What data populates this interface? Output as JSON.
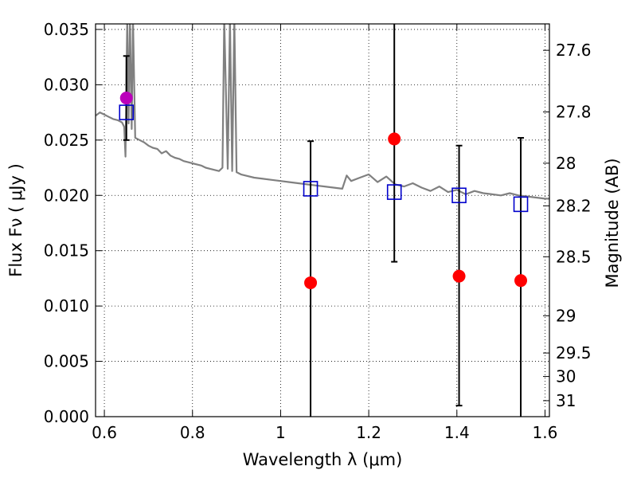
{
  "chart_data": {
    "type": "scatter",
    "title": "",
    "xlabel": "Wavelength  λ (μm)",
    "ylabel": "Flux  Fν  ( μJy )",
    "ylabel_right": "Magnitude (AB)",
    "xlim": [
      0.58,
      1.61
    ],
    "ylim": [
      0,
      0.0355
    ],
    "grid": true,
    "x_ticks": [
      {
        "v": 0.6,
        "label": "0.6"
      },
      {
        "v": 0.8,
        "label": "0.8"
      },
      {
        "v": 1.0,
        "label": "1"
      },
      {
        "v": 1.2,
        "label": "1.2"
      },
      {
        "v": 1.4,
        "label": "1.4"
      },
      {
        "v": 1.6,
        "label": "1.6"
      }
    ],
    "y_ticks": [
      {
        "v": 0.0,
        "label": "0.000"
      },
      {
        "v": 0.005,
        "label": "0.005"
      },
      {
        "v": 0.01,
        "label": "0.010"
      },
      {
        "v": 0.015,
        "label": "0.015"
      },
      {
        "v": 0.02,
        "label": "0.020"
      },
      {
        "v": 0.025,
        "label": "0.025"
      },
      {
        "v": 0.03,
        "label": "0.030"
      },
      {
        "v": 0.035,
        "label": "0.035"
      }
    ],
    "mag_ticks": [
      {
        "v": 27.6,
        "label": "27.6"
      },
      {
        "v": 27.8,
        "label": "27.8"
      },
      {
        "v": 28.0,
        "label": "28"
      },
      {
        "v": 28.2,
        "label": "28.2"
      },
      {
        "v": 28.5,
        "label": "28.5"
      },
      {
        "v": 29.0,
        "label": "29"
      },
      {
        "v": 29.5,
        "label": "29.5"
      },
      {
        "v": 30.0,
        "label": "30"
      },
      {
        "v": 31.0,
        "label": "31"
      }
    ],
    "series": [
      {
        "kind": "line",
        "color": "#808080",
        "x": [
          0.58,
          0.59,
          0.6,
          0.61,
          0.62,
          0.63,
          0.64,
          0.645,
          0.648,
          0.652,
          0.655,
          0.658,
          0.662,
          0.665,
          0.67,
          0.68,
          0.69,
          0.7,
          0.71,
          0.72,
          0.73,
          0.74,
          0.75,
          0.76,
          0.77,
          0.78,
          0.79,
          0.8,
          0.81,
          0.82,
          0.83,
          0.84,
          0.85,
          0.86,
          0.868,
          0.872,
          0.88,
          0.885,
          0.89,
          0.895,
          0.9,
          0.91,
          0.92,
          0.94,
          0.96,
          0.98,
          1.0,
          1.02,
          1.04,
          1.06,
          1.08,
          1.1,
          1.12,
          1.14,
          1.15,
          1.16,
          1.18,
          1.2,
          1.22,
          1.24,
          1.26,
          1.28,
          1.3,
          1.32,
          1.34,
          1.36,
          1.38,
          1.4,
          1.42,
          1.44,
          1.46,
          1.48,
          1.5,
          1.52,
          1.54,
          1.56,
          1.58,
          1.6,
          1.61
        ],
        "y": [
          0.0272,
          0.0275,
          0.0273,
          0.0271,
          0.0269,
          0.0268,
          0.0266,
          0.0262,
          0.0235,
          0.036,
          0.0265,
          0.036,
          0.026,
          0.036,
          0.0252,
          0.025,
          0.0248,
          0.0245,
          0.0243,
          0.0242,
          0.0238,
          0.024,
          0.0236,
          0.0234,
          0.0233,
          0.0231,
          0.023,
          0.0229,
          0.0228,
          0.0227,
          0.0225,
          0.0224,
          0.0223,
          0.0222,
          0.0225,
          0.036,
          0.0224,
          0.036,
          0.0222,
          0.036,
          0.0221,
          0.0219,
          0.0218,
          0.0216,
          0.0215,
          0.0214,
          0.0213,
          0.0212,
          0.0211,
          0.021,
          0.0209,
          0.0208,
          0.0207,
          0.0206,
          0.0218,
          0.0213,
          0.0216,
          0.0219,
          0.0212,
          0.0217,
          0.021,
          0.0208,
          0.0211,
          0.0207,
          0.0204,
          0.0208,
          0.0203,
          0.0205,
          0.0201,
          0.0204,
          0.0202,
          0.0201,
          0.02,
          0.0202,
          0.02,
          0.0199,
          0.0198,
          0.0197,
          0.0197
        ]
      },
      {
        "kind": "scatter",
        "marker": "circle",
        "color": "#bb00bb",
        "points": [
          {
            "x": 0.65,
            "y": 0.0288
          }
        ]
      },
      {
        "kind": "scatter",
        "marker": "circle",
        "color": "#ff0000",
        "points": [
          {
            "x": 1.068,
            "y": 0.0121
          },
          {
            "x": 1.258,
            "y": 0.0251
          },
          {
            "x": 1.405,
            "y": 0.0127
          },
          {
            "x": 1.545,
            "y": 0.0123
          }
        ]
      },
      {
        "kind": "errorbar",
        "color": "#000000",
        "bars": [
          {
            "x": 0.65,
            "low": 0.025,
            "high": 0.0326,
            "cap_low": true,
            "cap_high": true
          },
          {
            "x": 1.068,
            "low": 0.0,
            "high": 0.0249,
            "cap_low": false,
            "cap_high": true
          },
          {
            "x": 1.258,
            "low": 0.014,
            "high": 0.036,
            "cap_low": true,
            "cap_high": false
          },
          {
            "x": 1.405,
            "low": 0.001,
            "high": 0.0245,
            "cap_low": true,
            "cap_high": true
          },
          {
            "x": 1.545,
            "low": 0.0,
            "high": 0.0252,
            "cap_low": false,
            "cap_high": true
          }
        ]
      },
      {
        "kind": "scatter",
        "marker": "square-open",
        "color": "#0000cc",
        "points": [
          {
            "x": 0.65,
            "y": 0.0275
          },
          {
            "x": 1.068,
            "y": 0.0206
          },
          {
            "x": 1.258,
            "y": 0.0203
          },
          {
            "x": 1.405,
            "y": 0.02
          },
          {
            "x": 1.545,
            "y": 0.0192
          }
        ]
      }
    ]
  }
}
